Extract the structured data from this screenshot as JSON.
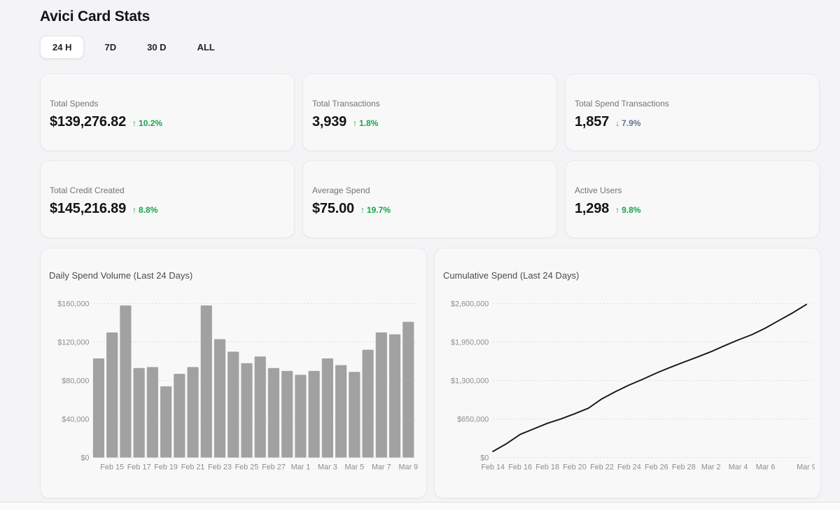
{
  "page": {
    "title": "Avici Card Stats"
  },
  "tabs": [
    {
      "label": "24 H",
      "active": true
    },
    {
      "label": "7D",
      "active": false
    },
    {
      "label": "30 D",
      "active": false
    },
    {
      "label": "ALL",
      "active": false
    }
  ],
  "stats": [
    {
      "label": "Total Spends",
      "value": "$139,276.82",
      "delta": "10.2%",
      "direction": "up",
      "arrow": "↑"
    },
    {
      "label": "Total Transactions",
      "value": "3,939",
      "delta": "1.8%",
      "direction": "up",
      "arrow": "↑"
    },
    {
      "label": "Total Spend Transactions",
      "value": "1,857",
      "delta": "7.9%",
      "direction": "down",
      "arrow": "↓"
    },
    {
      "label": "Total Credit Created",
      "value": "$145,216.89",
      "delta": "8.8%",
      "direction": "up",
      "arrow": "↑"
    },
    {
      "label": "Average Spend",
      "value": "$75.00",
      "delta": "19.7%",
      "direction": "up",
      "arrow": "↑"
    },
    {
      "label": "Active Users",
      "value": "1,298",
      "delta": "9.8%",
      "direction": "up",
      "arrow": "↑"
    }
  ],
  "colors": {
    "positive": "#18a34a",
    "negative": "#64748b",
    "bar": "#a1a1a1",
    "line": "#1a1a1a",
    "grid": "#dcdcdf",
    "axis_text": "#8d8d92"
  },
  "chart_data": [
    {
      "type": "bar",
      "title": "Daily Spend Volume (Last 24 Days)",
      "categories": [
        "Feb 14",
        "Feb 15",
        "Feb 16",
        "Feb 17",
        "Feb 18",
        "Feb 19",
        "Feb 20",
        "Feb 21",
        "Feb 22",
        "Feb 23",
        "Feb 24",
        "Feb 25",
        "Feb 26",
        "Feb 27",
        "Feb 28",
        "Mar 1",
        "Mar 2",
        "Mar 3",
        "Mar 4",
        "Mar 5",
        "Mar 6",
        "Mar 7",
        "Mar 8",
        "Mar 9"
      ],
      "values": [
        103000,
        130000,
        158000,
        93000,
        94000,
        74000,
        87000,
        94000,
        158000,
        123000,
        110000,
        98000,
        105000,
        93000,
        90000,
        86000,
        90000,
        103000,
        96000,
        89000,
        112000,
        130000,
        128000,
        141000
      ],
      "xlabel": "",
      "ylabel": "",
      "ylim": [
        0,
        160000
      ],
      "y_ticks": [
        0,
        40000,
        80000,
        120000,
        160000
      ],
      "y_tick_labels": [
        "$0",
        "$40,000",
        "$80,000",
        "$120,000",
        "$160,000"
      ],
      "x_label_indices": [
        1,
        3,
        5,
        7,
        9,
        11,
        13,
        15,
        17,
        19,
        21,
        23
      ],
      "grid": "dotted-horizontal",
      "legend": "none"
    },
    {
      "type": "line",
      "title": "Cumulative Spend (Last 24 Days)",
      "categories": [
        "Feb 14",
        "Feb 15",
        "Feb 16",
        "Feb 17",
        "Feb 18",
        "Feb 19",
        "Feb 20",
        "Feb 21",
        "Feb 22",
        "Feb 23",
        "Feb 24",
        "Feb 25",
        "Feb 26",
        "Feb 27",
        "Feb 28",
        "Mar 1",
        "Mar 2",
        "Mar 3",
        "Mar 4",
        "Mar 5",
        "Mar 6",
        "Mar 7",
        "Mar 8",
        "Mar 9"
      ],
      "values": [
        103000,
        233000,
        391000,
        484000,
        578000,
        652000,
        739000,
        833000,
        991000,
        1114000,
        1224000,
        1322000,
        1427000,
        1520000,
        1610000,
        1696000,
        1786000,
        1889000,
        1985000,
        2074000,
        2186000,
        2316000,
        2444000,
        2585000
      ],
      "xlabel": "",
      "ylabel": "",
      "ylim": [
        0,
        2600000
      ],
      "y_ticks": [
        0,
        650000,
        1300000,
        1950000,
        2600000
      ],
      "y_tick_labels": [
        "$0",
        "$650,000",
        "$1,300,000",
        "$1,950,000",
        "$2,600,000"
      ],
      "x_label_indices": [
        0,
        2,
        4,
        6,
        8,
        10,
        12,
        14,
        16,
        18,
        20,
        23
      ],
      "grid": "dotted-horizontal",
      "legend": "none"
    }
  ]
}
